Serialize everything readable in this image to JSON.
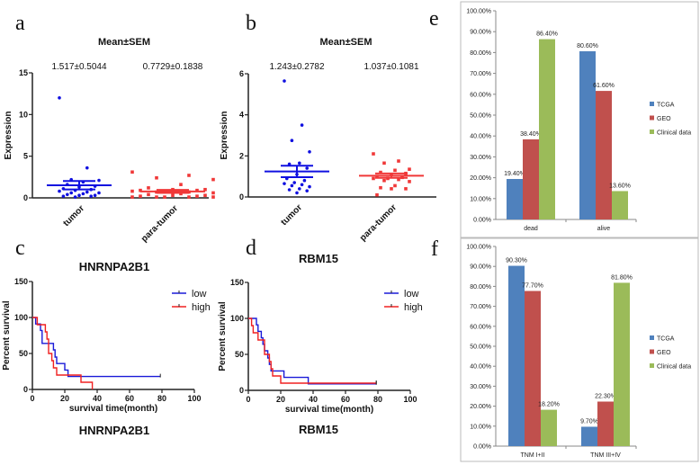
{
  "chart_data": [
    {
      "panel_label": "a",
      "type": "scatter",
      "title": "Mean±SEM",
      "ylabel": "Expression",
      "ylim": [
        0,
        15
      ],
      "yticks": [
        0,
        5,
        10,
        15
      ],
      "ytick_labels": [
        "0",
        "5",
        "10",
        "15"
      ],
      "categories": [
        "tumor",
        "para-tumor"
      ],
      "series": [
        {
          "name": "tumor",
          "color": "#1010e0",
          "marker": "circle",
          "stat_label": "1.517±0.5044",
          "mean": 1.517,
          "sem": 0.5044,
          "values": [
            12.0,
            3.6,
            2.2,
            2.1,
            1.9,
            1.6,
            1.4,
            1.3,
            1.1,
            1.0,
            0.9,
            0.8,
            0.7,
            0.6,
            0.6,
            0.5,
            0.4,
            0.3,
            0.3,
            0.2,
            0.2,
            0.1
          ]
        },
        {
          "name": "para-tumor",
          "color": "#f03838",
          "marker": "square",
          "stat_label": "0.7729±0.1838",
          "mean": 0.7729,
          "sem": 0.1838,
          "values": [
            3.1,
            2.7,
            2.4,
            2.2,
            1.6,
            1.2,
            1.0,
            1.0,
            0.9,
            0.9,
            0.8,
            0.8,
            0.7,
            0.7,
            0.6,
            0.5,
            0.4,
            0.3,
            0.3,
            0.2,
            0.2,
            0.1,
            0.1,
            0.1,
            0.1,
            0.1
          ]
        }
      ]
    },
    {
      "panel_label": "b",
      "type": "scatter",
      "title": "Mean±SEM",
      "ylabel": "Expression",
      "ylim": [
        0,
        6
      ],
      "yticks": [
        0,
        2,
        4,
        6
      ],
      "ytick_labels": [
        "0",
        "2",
        "4",
        "6"
      ],
      "categories": [
        "tumor",
        "para-tumor"
      ],
      "series": [
        {
          "name": "tumor",
          "color": "#1010e0",
          "marker": "circle",
          "stat_label": "1.243±0.2782",
          "mean": 1.243,
          "sem": 0.2782,
          "values": [
            5.65,
            3.5,
            2.75,
            2.2,
            1.65,
            1.6,
            1.4,
            1.1,
            0.9,
            0.8,
            0.7,
            0.65,
            0.6,
            0.55,
            0.5,
            0.4,
            0.35,
            0.3,
            0.2
          ]
        },
        {
          "name": "para-tumor",
          "color": "#f03838",
          "marker": "square",
          "stat_label": "1.037±0.1081",
          "mean": 1.037,
          "sem": 0.1081,
          "values": [
            2.1,
            1.75,
            1.65,
            1.35,
            1.3,
            1.2,
            1.15,
            1.1,
            1.0,
            0.95,
            0.9,
            0.9,
            0.85,
            0.8,
            0.75,
            0.55,
            0.45,
            0.4,
            0.4,
            0.1
          ]
        }
      ]
    },
    {
      "panel_label": "c",
      "type": "line",
      "title": "HNRNPA2B1",
      "bottom_title": "HNRNPA2B1",
      "xlabel": "survival time(month)",
      "ylabel": "Percent survival",
      "xlim": [
        0,
        100
      ],
      "ylim": [
        0,
        150
      ],
      "xticks": [
        0,
        20,
        40,
        60,
        80,
        100
      ],
      "xtick_labels": [
        "0",
        "20",
        "40",
        "60",
        "80",
        "100"
      ],
      "yticks": [
        0,
        50,
        100,
        150
      ],
      "ytick_labels": [
        "0",
        "50",
        "100",
        "150"
      ],
      "legend": "top-right",
      "series": [
        {
          "name": "low",
          "color": "#1a1ad8",
          "steps": [
            [
              2,
              91
            ],
            [
              5,
              82
            ],
            [
              6,
              64
            ],
            [
              13,
              55
            ],
            [
              14,
              45
            ],
            [
              15,
              36
            ],
            [
              20,
              27
            ],
            [
              22,
              18
            ],
            [
              79,
              18
            ]
          ],
          "censor": [
            79
          ]
        },
        {
          "name": "high",
          "color": "#f02020",
          "steps": [
            [
              3,
              90
            ],
            [
              8,
              80
            ],
            [
              9,
              70
            ],
            [
              10,
              50
            ],
            [
              12,
              40
            ],
            [
              13,
              30
            ],
            [
              15,
              20
            ],
            [
              30,
              10
            ],
            [
              37,
              0
            ]
          ],
          "censor": []
        }
      ]
    },
    {
      "panel_label": "d",
      "type": "line",
      "title": "RBM15",
      "bottom_title": "RBM15",
      "xlabel": "survival time(month)",
      "ylabel": "Percent survival",
      "xlim": [
        0,
        100
      ],
      "ylim": [
        0,
        150
      ],
      "xticks": [
        0,
        20,
        40,
        60,
        80,
        100
      ],
      "xtick_labels": [
        "0",
        "20",
        "40",
        "60",
        "80",
        "100"
      ],
      "yticks": [
        0,
        50,
        100,
        150
      ],
      "ytick_labels": [
        "0",
        "50",
        "100",
        "150"
      ],
      "legend": "top-right",
      "series": [
        {
          "name": "low",
          "color": "#1a1ad8",
          "steps": [
            [
              5,
              91
            ],
            [
              6,
              82
            ],
            [
              8,
              73
            ],
            [
              9,
              64
            ],
            [
              10,
              55
            ],
            [
              12,
              45
            ],
            [
              13,
              36
            ],
            [
              14,
              27
            ],
            [
              22,
              18
            ],
            [
              37,
              9
            ],
            [
              79,
              9
            ]
          ],
          "censor": [
            79
          ]
        },
        {
          "name": "high",
          "color": "#f02020",
          "steps": [
            [
              2,
              90
            ],
            [
              3,
              80
            ],
            [
              6,
              70
            ],
            [
              10,
              50
            ],
            [
              13,
              40
            ],
            [
              14,
              30
            ],
            [
              15,
              20
            ],
            [
              20,
              10
            ],
            [
              79,
              10
            ]
          ],
          "censor": [
            79
          ]
        }
      ]
    },
    {
      "panel_label": "e",
      "type": "bar",
      "categories": [
        "dead",
        "alive"
      ],
      "ylim": [
        0,
        100
      ],
      "ytick_labels": [
        "0.00%",
        "10.00%",
        "20.00%",
        "30.00%",
        "40.00%",
        "50.00%",
        "60.00%",
        "70.00%",
        "80.00%",
        "90.00%",
        "100.00%"
      ],
      "legend": "right",
      "series": [
        {
          "name": "TCGA",
          "color": "#4f81bd",
          "values": [
            19.4,
            80.6
          ],
          "labels": [
            "19.40%",
            "80.60%"
          ]
        },
        {
          "name": "GEO",
          "color": "#c0504d",
          "values": [
            38.4,
            61.6
          ],
          "labels": [
            "38.40%",
            "61.60%"
          ]
        },
        {
          "name": "Clinical data",
          "color": "#9bbb59",
          "values": [
            86.4,
            13.6
          ],
          "labels": [
            "86.40%",
            "13.60%"
          ]
        }
      ]
    },
    {
      "panel_label": "f",
      "type": "bar",
      "categories": [
        "TNM I+II",
        "TNM III+IV"
      ],
      "ylim": [
        0,
        100
      ],
      "ytick_labels": [
        "0.00%",
        "10.00%",
        "20.00%",
        "30.00%",
        "40.00%",
        "50.00%",
        "60.00%",
        "70.00%",
        "80.00%",
        "90.00%",
        "100.00%"
      ],
      "legend": "right",
      "series": [
        {
          "name": "TCGA",
          "color": "#4f81bd",
          "values": [
            90.3,
            9.7
          ],
          "labels": [
            "90.30%",
            "9.70%"
          ]
        },
        {
          "name": "GEO",
          "color": "#c0504d",
          "values": [
            77.7,
            22.3
          ],
          "labels": [
            "77.70%",
            "22.30%"
          ]
        },
        {
          "name": "Clinical data",
          "color": "#9bbb59",
          "values": [
            18.2,
            81.8
          ],
          "labels": [
            "18.20%",
            "81.80%"
          ]
        }
      ]
    }
  ]
}
